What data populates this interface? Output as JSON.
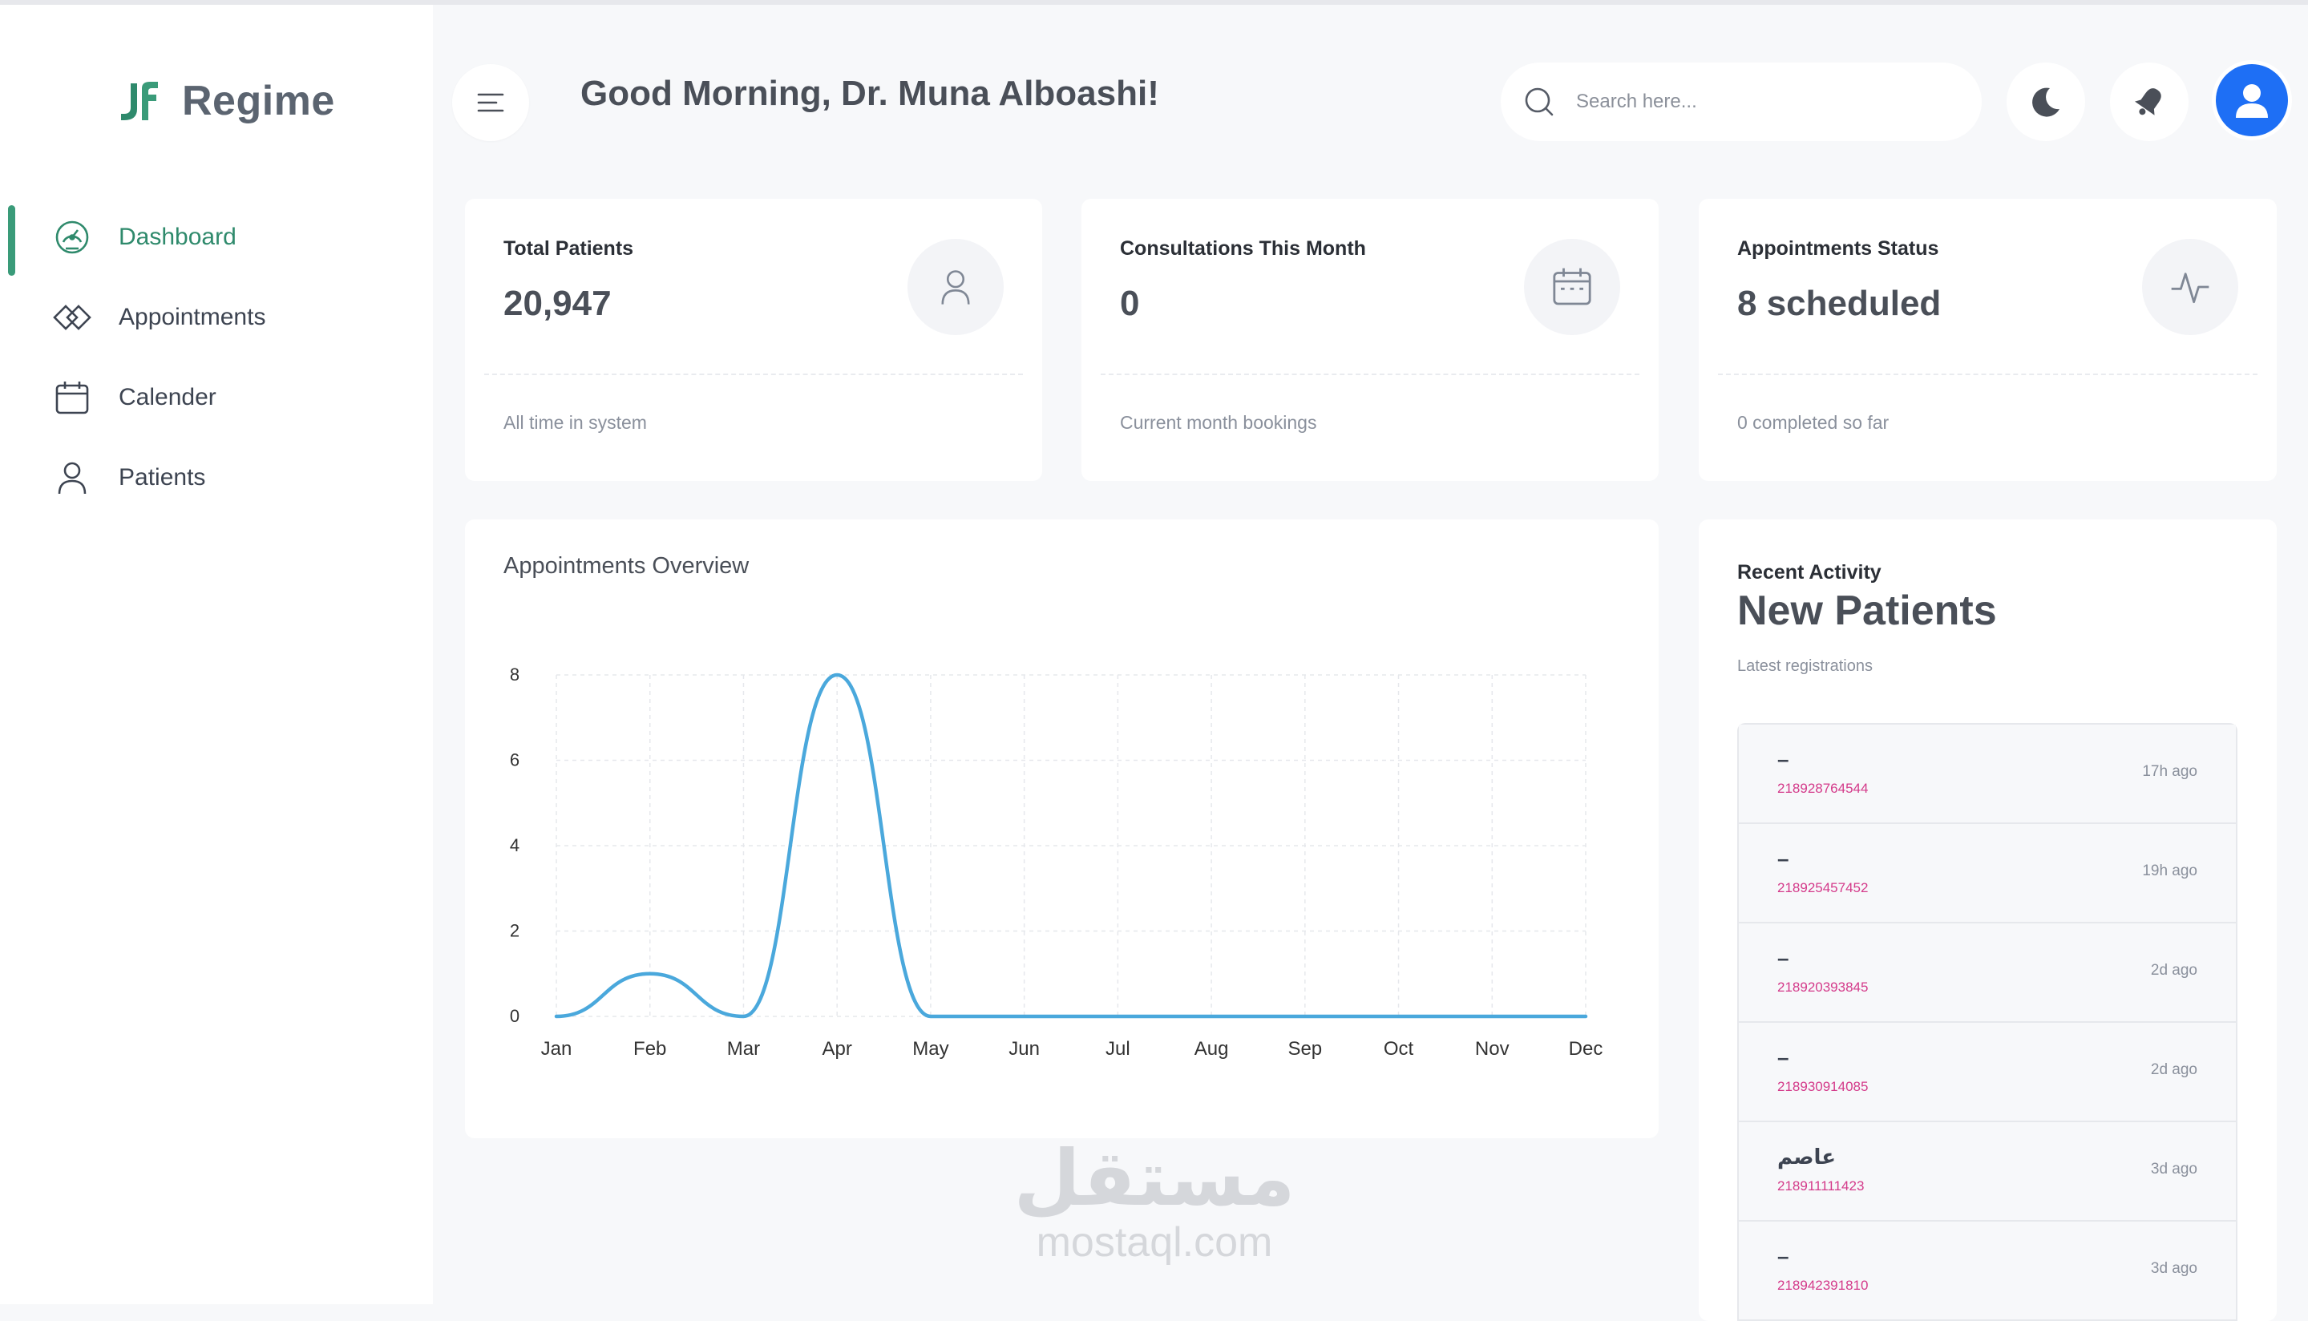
{
  "app": {
    "name": "Regime"
  },
  "sidebar": {
    "items": [
      {
        "label": "Dashboard",
        "icon": "dashboard-gauge-icon",
        "active": true
      },
      {
        "label": "Appointments",
        "icon": "diamond-icon"
      },
      {
        "label": "Calender",
        "icon": "calendar-icon"
      },
      {
        "label": "Patients",
        "icon": "user-icon"
      }
    ]
  },
  "header": {
    "greeting": "Good Morning, Dr. Muna Alboashi!",
    "search_placeholder": "Search here..."
  },
  "stats": [
    {
      "title": "Total Patients",
      "value": "20,947",
      "sub": "All time in system",
      "icon": "user-icon"
    },
    {
      "title": "Consultations This Month",
      "value": "0",
      "sub": "Current month bookings",
      "icon": "calendar-icon"
    },
    {
      "title": "Appointments Status",
      "value": "8 scheduled",
      "sub": "0 completed so far",
      "icon": "activity-icon"
    }
  ],
  "chart_data": {
    "type": "line",
    "title": "Appointments Overview",
    "categories": [
      "Jan",
      "Feb",
      "Mar",
      "Apr",
      "May",
      "Jun",
      "Jul",
      "Aug",
      "Sep",
      "Oct",
      "Nov",
      "Dec"
    ],
    "values": [
      0,
      1,
      0,
      8,
      0,
      0,
      0,
      0,
      0,
      0,
      0,
      0
    ],
    "ylim": [
      0,
      8
    ],
    "yticks": [
      0,
      2,
      4,
      6,
      8
    ],
    "grid": true,
    "line_color": "#4aa8dc"
  },
  "activity": {
    "kicker": "Recent Activity",
    "title": "New Patients",
    "subtitle": "Latest registrations",
    "rows": [
      {
        "name": "–",
        "phone": "218928764544",
        "time": "17h ago"
      },
      {
        "name": "–",
        "phone": "218925457452",
        "time": "19h ago"
      },
      {
        "name": "–",
        "phone": "218920393845",
        "time": "2d ago"
      },
      {
        "name": "–",
        "phone": "218930914085",
        "time": "2d ago"
      },
      {
        "name": "عاصم",
        "phone": "218911111423",
        "time": "3d ago"
      },
      {
        "name": "–",
        "phone": "218942391810",
        "time": "3d ago"
      }
    ]
  },
  "watermark": {
    "arabic": "مستقل",
    "latin": "mostaql.com"
  }
}
